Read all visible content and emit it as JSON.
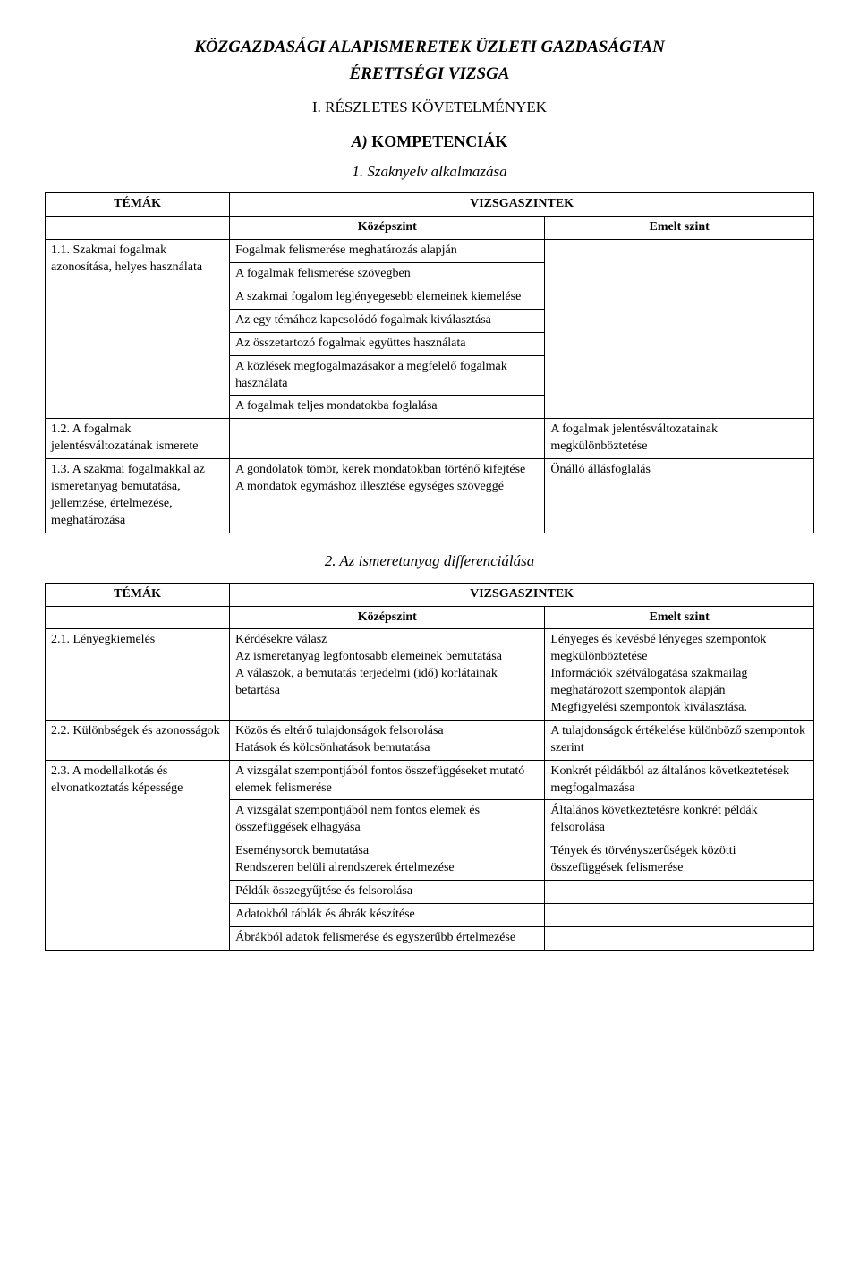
{
  "doc": {
    "title_line1": "KÖZGAZDASÁGI ALAPISMERETEK ÜZLETI GAZDASÁGTAN",
    "title_line2": "ÉRETTSÉGI VIZSGA",
    "section_roman": "I. RÉSZLETES KÖVETELMÉNYEK",
    "section_letter_letter": "A)",
    "section_letter_text": " KOMPETENCIÁK",
    "sub1": "1. Szaknyelv alkalmazása",
    "sub2": "2. Az ismeretanyag differenciálása"
  },
  "headers": {
    "topics": "TÉMÁK",
    "levels": "VIZSGASZINTEK",
    "mid": "Középszint",
    "adv": "Emelt szint"
  },
  "t1": {
    "r1": {
      "topic": "1.1. Szakmai fogalmak azonosítása, helyes használata",
      "mid": [
        "Fogalmak felismerése meghatározás alapján",
        "A fogalmak felismerése szövegben",
        "A szakmai fogalom leglényegesebb elemeinek kiemelése",
        "Az egy témához kapcsolódó fogalmak kiválasztása",
        "Az összetartozó fogalmak együttes használata",
        "A közlések megfogalmazásakor a megfelelő fogalmak használata",
        "A fogalmak teljes mondatokba foglalása"
      ],
      "adv": ""
    },
    "r2": {
      "topic": "1.2. A fogalmak jelentésváltozatának ismerete",
      "mid": "",
      "adv": "A fogalmak jelentésváltozatainak megkülönböztetése"
    },
    "r3": {
      "topic": "1.3. A szakmai fogalmakkal az ismeretanyag bemutatása, jellemzése, értelmezése, meghatározása",
      "mid": "A gondolatok tömör, kerek mondatokban történő kifejtése\nA mondatok egymáshoz illesztése egységes szöveggé",
      "adv": "Önálló állásfoglalás"
    }
  },
  "t2": {
    "r1": {
      "topic": "2.1. Lényegkiemelés",
      "mid": "Kérdésekre válasz\nAz ismeretanyag legfontosabb elemeinek bemutatása\nA válaszok, a bemutatás terjedelmi (idő) korlátainak betartása",
      "adv": "Lényeges és kevésbé lényeges szempontok megkülönböztetése\nInformációk szétválogatása szakmailag meghatározott szempontok alapján\nMegfigyelési szempontok kiválasztása."
    },
    "r2": {
      "topic": "2.2. Különbségek és azonosságok",
      "mid": "Közös és eltérő tulajdonságok felsorolása\nHatások és kölcsönhatások bemutatása",
      "adv": "A tulajdonságok értékelése különböző szempontok szerint"
    },
    "r3": {
      "topic": "2.3. A modellalkotás és elvonatkoztatás képessége",
      "rows": [
        {
          "mid": "A vizsgálat szempontjából fontos összefüggéseket mutató elemek felismerése",
          "adv": "Konkrét példákból az általános következtetések megfogalmazása"
        },
        {
          "mid": "A vizsgálat szempontjából nem fontos elemek és összefüggések elhagyása",
          "adv": "Általános következtetésre konkrét példák felsorolása"
        },
        {
          "mid": "Eseménysorok bemutatása\nRendszeren belüli alrendszerek értelmezése",
          "adv": "Tények és törvényszerűségek közötti összefüggések felismerése"
        },
        {
          "mid": "Példák összegyűjtése és felsorolása",
          "adv": ""
        },
        {
          "mid": "Adatokból táblák és ábrák készítése",
          "adv": ""
        },
        {
          "mid": "Ábrákból adatok felismerése és egyszerűbb értelmezése",
          "adv": ""
        }
      ]
    }
  }
}
